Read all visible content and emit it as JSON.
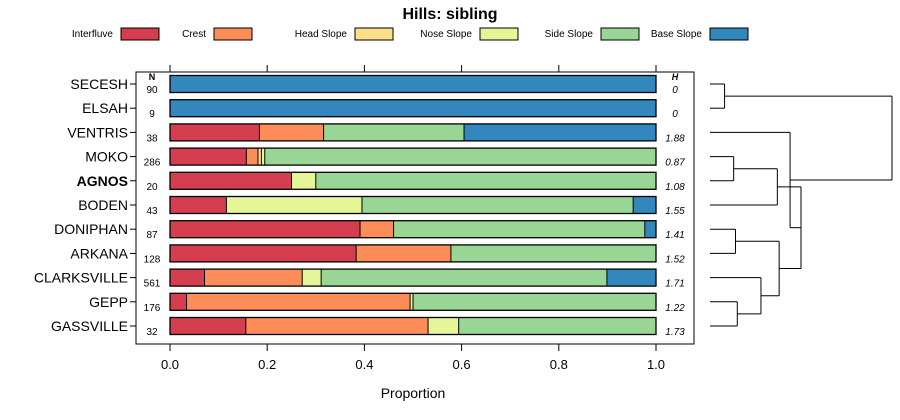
{
  "chart_data": {
    "type": "bar",
    "orientation": "horizontal",
    "stacked": true,
    "title": "Hills: sibling",
    "xlabel": "Proportion",
    "ylabel": "",
    "xlim": [
      0,
      1
    ],
    "xticks": [
      "0.0",
      "0.2",
      "0.4",
      "0.6",
      "0.8",
      "1.0"
    ],
    "legend_position": "top",
    "n_header": "N",
    "h_header": "H",
    "series": [
      {
        "name": "Interfluve",
        "color": "#d53e4f"
      },
      {
        "name": "Crest",
        "color": "#fc8d59"
      },
      {
        "name": "Head Slope",
        "color": "#fee08b"
      },
      {
        "name": "Nose Slope",
        "color": "#e6f598"
      },
      {
        "name": "Side Slope",
        "color": "#99d594"
      },
      {
        "name": "Base Slope",
        "color": "#3288bd"
      }
    ],
    "categories": [
      {
        "label": "SECESH",
        "n": "90",
        "h": "0",
        "bold": false,
        "values": [
          0,
          0,
          0,
          0,
          0,
          1.0
        ]
      },
      {
        "label": "ELSAH",
        "n": "9",
        "h": "0",
        "bold": false,
        "values": [
          0,
          0,
          0,
          0,
          0,
          1.0
        ]
      },
      {
        "label": "VENTRIS",
        "n": "38",
        "h": "1.88",
        "bold": false,
        "values": [
          0.184,
          0.132,
          0,
          0,
          0.289,
          0.395
        ]
      },
      {
        "label": "MOKO",
        "n": "286",
        "h": "0.87",
        "bold": false,
        "values": [
          0.157,
          0.024,
          0.007,
          0.007,
          0.805,
          0
        ]
      },
      {
        "label": "AGNOS",
        "n": "20",
        "h": "1.08",
        "bold": true,
        "values": [
          0.25,
          0,
          0,
          0.05,
          0.7,
          0
        ]
      },
      {
        "label": "BODEN",
        "n": "43",
        "h": "1.55",
        "bold": false,
        "values": [
          0.116,
          0,
          0,
          0.279,
          0.558,
          0.047
        ]
      },
      {
        "label": "DONIPHAN",
        "n": "87",
        "h": "1.41",
        "bold": false,
        "values": [
          0.391,
          0.069,
          0,
          0,
          0.517,
          0.023
        ]
      },
      {
        "label": "ARKANA",
        "n": "128",
        "h": "1.52",
        "bold": false,
        "values": [
          0.383,
          0.195,
          0,
          0,
          0.422,
          0
        ]
      },
      {
        "label": "CLARKSVILLE",
        "n": "561",
        "h": "1.71",
        "bold": false,
        "values": [
          0.071,
          0.201,
          0,
          0.039,
          0.588,
          0.101
        ]
      },
      {
        "label": "GEPP",
        "n": "176",
        "h": "1.22",
        "bold": false,
        "values": [
          0.034,
          0.46,
          0,
          0.006,
          0.5,
          0
        ]
      },
      {
        "label": "GASSVILLE",
        "n": "32",
        "h": "1.73",
        "bold": false,
        "values": [
          0.156,
          0.375,
          0,
          0.063,
          0.406,
          0
        ]
      }
    ],
    "dendrogram": {
      "merges": [
        [
          0,
          1,
          0.02
        ],
        [
          2,
          3,
          0.18
        ],
        [
          5,
          4,
          0.52
        ],
        [
          5,
          6,
          0.4
        ],
        [
          7,
          8,
          0.42
        ],
        [
          8,
          9,
          0.55
        ],
        [
          8,
          10,
          0.62
        ],
        [
          3,
          10,
          0.7
        ],
        [
          3,
          2,
          0.9
        ],
        [
          0,
          10,
          1.0
        ]
      ]
    }
  }
}
